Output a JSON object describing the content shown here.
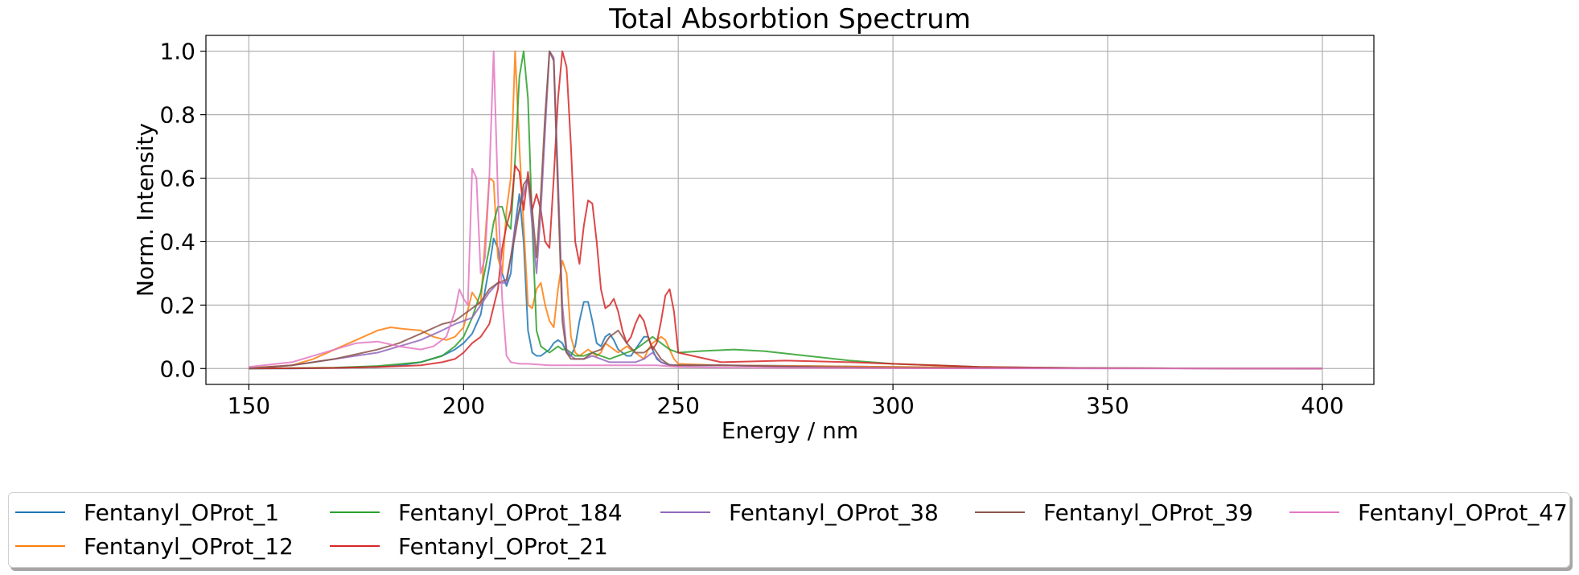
{
  "chart_data": {
    "type": "line",
    "title": "Total Absorbtion Spectrum",
    "xlabel": "Energy / nm",
    "ylabel": "Norm. Intensity",
    "xlim": [
      140,
      412
    ],
    "ylim": [
      -0.05,
      1.05
    ],
    "xticks": [
      "150",
      "200",
      "250",
      "300",
      "350",
      "400"
    ],
    "yticks": [
      "0.0",
      "0.2",
      "0.4",
      "0.6",
      "0.8",
      "1.0"
    ],
    "grid": true,
    "legend_position": "bottom",
    "series": [
      {
        "name": "Fentanyl_OProt_1",
        "color": "#1f77b4",
        "x": [
          150,
          160,
          170,
          180,
          185,
          190,
          195,
          198,
          200,
          202,
          204,
          206,
          207,
          208,
          209,
          210,
          211,
          212,
          213,
          214,
          215,
          216,
          217,
          218,
          219,
          220,
          221,
          222,
          223,
          224,
          225,
          226,
          227,
          228,
          229,
          230,
          231,
          232,
          233,
          234,
          235,
          236,
          237,
          238,
          239,
          240,
          241,
          242,
          243,
          244,
          245,
          246,
          247,
          248,
          249,
          250,
          260,
          280,
          300,
          320,
          350,
          400
        ],
        "y": [
          0,
          0,
          0.002,
          0.005,
          0.01,
          0.02,
          0.04,
          0.06,
          0.08,
          0.11,
          0.17,
          0.32,
          0.41,
          0.38,
          0.3,
          0.26,
          0.3,
          0.45,
          0.55,
          0.4,
          0.12,
          0.05,
          0.04,
          0.04,
          0.05,
          0.06,
          0.08,
          0.09,
          0.08,
          0.05,
          0.04,
          0.07,
          0.15,
          0.21,
          0.21,
          0.15,
          0.08,
          0.07,
          0.1,
          0.11,
          0.09,
          0.06,
          0.05,
          0.04,
          0.04,
          0.06,
          0.08,
          0.1,
          0.1,
          0.06,
          0.03,
          0.02,
          0.015,
          0.012,
          0.01,
          0.01,
          0.01,
          0.008,
          0.005,
          0.002,
          0.001,
          0
        ]
      },
      {
        "name": "Fentanyl_OProt_12",
        "color": "#ff7f0e",
        "x": [
          150,
          160,
          165,
          170,
          175,
          180,
          183,
          186,
          190,
          193,
          196,
          198,
          200,
          202,
          204,
          206,
          207,
          208,
          209,
          210,
          211,
          212,
          213,
          214,
          215,
          216,
          217,
          218,
          219,
          220,
          221,
          222,
          223,
          224,
          225,
          226,
          227,
          228,
          229,
          230,
          231,
          232,
          233,
          234,
          235,
          236,
          237,
          238,
          239,
          240,
          241,
          242,
          243,
          244,
          245,
          246,
          247,
          248,
          249,
          250,
          260,
          300,
          350,
          400
        ],
        "y": [
          0.002,
          0.01,
          0.03,
          0.06,
          0.09,
          0.12,
          0.13,
          0.125,
          0.12,
          0.1,
          0.09,
          0.1,
          0.13,
          0.24,
          0.2,
          0.6,
          0.59,
          0.35,
          0.3,
          0.5,
          0.6,
          1.0,
          0.7,
          0.45,
          0.2,
          0.19,
          0.25,
          0.27,
          0.2,
          0.15,
          0.13,
          0.25,
          0.34,
          0.3,
          0.1,
          0.05,
          0.04,
          0.05,
          0.06,
          0.05,
          0.04,
          0.05,
          0.08,
          0.07,
          0.06,
          0.05,
          0.06,
          0.07,
          0.06,
          0.05,
          0.04,
          0.03,
          0.06,
          0.08,
          0.09,
          0.1,
          0.09,
          0.06,
          0.03,
          0.015,
          0.01,
          0.005,
          0.001,
          0
        ]
      },
      {
        "name": "Fentanyl_OProt_184",
        "color": "#2ca02c",
        "x": [
          150,
          170,
          180,
          190,
          195,
          198,
          200,
          202,
          204,
          206,
          207,
          208,
          209,
          210,
          211,
          212,
          213,
          214,
          215,
          216,
          217,
          218,
          219,
          220,
          221,
          222,
          223,
          224,
          225,
          226,
          228,
          230,
          232,
          234,
          236,
          238,
          240,
          242,
          244,
          246,
          248,
          250,
          255,
          263,
          270,
          280,
          290,
          300,
          310,
          320,
          350,
          400
        ],
        "y": [
          0,
          0.003,
          0.008,
          0.02,
          0.04,
          0.07,
          0.1,
          0.16,
          0.24,
          0.38,
          0.46,
          0.51,
          0.51,
          0.46,
          0.44,
          0.66,
          0.92,
          1.0,
          0.85,
          0.45,
          0.12,
          0.07,
          0.06,
          0.05,
          0.06,
          0.07,
          0.06,
          0.06,
          0.05,
          0.04,
          0.04,
          0.05,
          0.04,
          0.03,
          0.04,
          0.05,
          0.06,
          0.08,
          0.1,
          0.08,
          0.06,
          0.05,
          0.055,
          0.06,
          0.055,
          0.04,
          0.025,
          0.015,
          0.01,
          0.005,
          0.001,
          0
        ]
      },
      {
        "name": "Fentanyl_OProt_21",
        "color": "#d62728",
        "x": [
          150,
          170,
          180,
          190,
          195,
          198,
          200,
          202,
          204,
          206,
          208,
          209,
          210,
          211,
          212,
          213,
          214,
          215,
          216,
          217,
          218,
          219,
          220,
          221,
          222,
          223,
          224,
          225,
          226,
          227,
          228,
          229,
          230,
          231,
          232,
          233,
          234,
          235,
          236,
          237,
          238,
          239,
          240,
          241,
          242,
          243,
          244,
          245,
          246,
          247,
          248,
          249,
          250,
          260,
          275,
          290,
          300,
          310,
          320,
          350,
          400
        ],
        "y": [
          0,
          0.002,
          0.005,
          0.01,
          0.02,
          0.03,
          0.05,
          0.08,
          0.1,
          0.14,
          0.25,
          0.38,
          0.45,
          0.5,
          0.64,
          0.62,
          0.5,
          0.62,
          0.5,
          0.55,
          0.5,
          0.4,
          0.38,
          0.6,
          0.85,
          1.0,
          0.95,
          0.7,
          0.4,
          0.33,
          0.45,
          0.53,
          0.52,
          0.4,
          0.25,
          0.19,
          0.2,
          0.22,
          0.18,
          0.12,
          0.08,
          0.1,
          0.14,
          0.17,
          0.15,
          0.1,
          0.06,
          0.08,
          0.15,
          0.23,
          0.25,
          0.18,
          0.05,
          0.02,
          0.025,
          0.02,
          0.015,
          0.01,
          0.005,
          0.001,
          0
        ]
      },
      {
        "name": "Fentanyl_OProt_38",
        "color": "#9467bd",
        "x": [
          150,
          160,
          170,
          180,
          185,
          190,
          195,
          198,
          200,
          202,
          204,
          206,
          208,
          210,
          211,
          212,
          213,
          214,
          215,
          216,
          217,
          218,
          219,
          220,
          221,
          222,
          223,
          224,
          225,
          226,
          228,
          230,
          232,
          234,
          236,
          238,
          240,
          242,
          244,
          246,
          248,
          250,
          260,
          280,
          300,
          350,
          400
        ],
        "y": [
          0,
          0.01,
          0.03,
          0.05,
          0.07,
          0.09,
          0.12,
          0.14,
          0.15,
          0.16,
          0.2,
          0.24,
          0.27,
          0.27,
          0.35,
          0.45,
          0.5,
          0.55,
          0.6,
          0.45,
          0.3,
          0.5,
          0.75,
          1.0,
          0.98,
          0.6,
          0.2,
          0.06,
          0.04,
          0.03,
          0.03,
          0.04,
          0.03,
          0.02,
          0.02,
          0.02,
          0.02,
          0.03,
          0.05,
          0.02,
          0.01,
          0.01,
          0.01,
          0.005,
          0.002,
          0.001,
          0
        ]
      },
      {
        "name": "Fentanyl_OProt_39",
        "color": "#8c564b",
        "x": [
          150,
          160,
          170,
          180,
          185,
          190,
          195,
          198,
          200,
          202,
          204,
          206,
          208,
          210,
          211,
          212,
          213,
          214,
          215,
          216,
          217,
          218,
          219,
          220,
          221,
          222,
          223,
          224,
          225,
          226,
          228,
          230,
          232,
          234,
          236,
          238,
          240,
          242,
          244,
          246,
          248,
          250,
          260,
          280,
          300,
          350,
          400
        ],
        "y": [
          0,
          0.01,
          0.03,
          0.06,
          0.08,
          0.11,
          0.14,
          0.15,
          0.17,
          0.19,
          0.21,
          0.25,
          0.27,
          0.28,
          0.35,
          0.42,
          0.5,
          0.58,
          0.6,
          0.5,
          0.35,
          0.55,
          0.8,
          1.0,
          0.97,
          0.55,
          0.15,
          0.05,
          0.03,
          0.03,
          0.03,
          0.05,
          0.06,
          0.1,
          0.12,
          0.08,
          0.05,
          0.05,
          0.07,
          0.03,
          0.01,
          0.01,
          0.01,
          0.005,
          0.002,
          0.001,
          0
        ]
      },
      {
        "name": "Fentanyl_OProt_47",
        "color": "#e377c2",
        "x": [
          150,
          160,
          170,
          175,
          180,
          185,
          190,
          193,
          196,
          198,
          199,
          200,
          201,
          202,
          203,
          204,
          205,
          206,
          207,
          208,
          209,
          210,
          211,
          213,
          215,
          220,
          225,
          230,
          235,
          240,
          245,
          250,
          260,
          300,
          350,
          400
        ],
        "y": [
          0.005,
          0.02,
          0.06,
          0.08,
          0.085,
          0.07,
          0.06,
          0.07,
          0.1,
          0.18,
          0.25,
          0.22,
          0.2,
          0.63,
          0.6,
          0.3,
          0.35,
          0.6,
          1.0,
          0.55,
          0.22,
          0.04,
          0.02,
          0.015,
          0.015,
          0.01,
          0.01,
          0.01,
          0.01,
          0.01,
          0.01,
          0.005,
          0.003,
          0.001,
          0,
          0
        ]
      }
    ]
  }
}
